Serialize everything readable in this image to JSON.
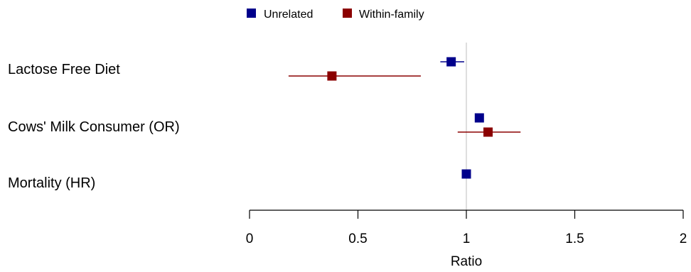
{
  "chart_data": {
    "type": "forest",
    "categories": [
      "Lactose Free Diet",
      "Cows' Milk Consumer (OR)",
      "Mortality (HR)"
    ],
    "series": [
      {
        "name": "Unrelated",
        "color": "#00008b",
        "estimates": [
          0.93,
          1.06,
          1.0
        ],
        "lower": [
          0.88,
          1.04,
          0.98
        ],
        "upper": [
          0.99,
          1.08,
          1.02
        ]
      },
      {
        "name": "Within-family",
        "color": "#8b0000",
        "estimates": [
          0.38,
          1.1,
          null
        ],
        "lower": [
          0.18,
          0.96,
          null
        ],
        "upper": [
          0.79,
          1.25,
          null
        ]
      }
    ],
    "xlabel": "Ratio",
    "xlim": [
      0,
      2
    ],
    "xticks": [
      0,
      0.5,
      1,
      1.5,
      2
    ],
    "xtick_labels": [
      "0",
      "0.5",
      "1",
      "1.5",
      "2"
    ],
    "reference_line": 1,
    "reference_line_color": "#d3d3d3",
    "legend_position": "top-center",
    "grid": false
  }
}
